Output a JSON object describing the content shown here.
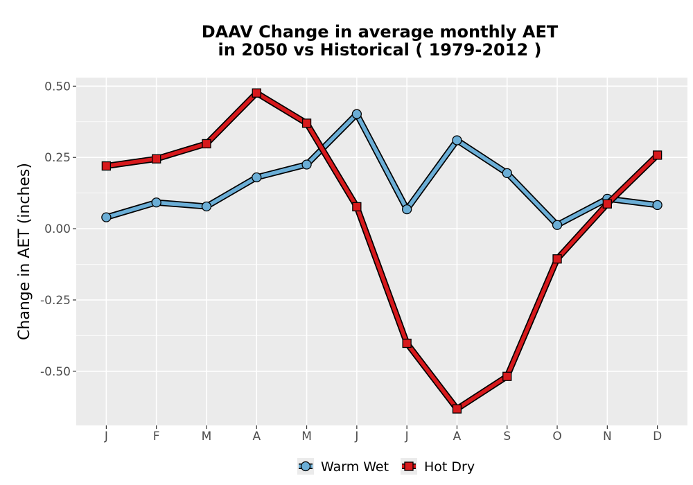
{
  "chart_data": {
    "type": "line",
    "title_line1": "DAAV  Change in average monthly AET",
    "title_line2": "in 2050 vs Historical ( 1979-2012 )",
    "xlabel": "",
    "ylabel": "Change in AET (inches)",
    "categories": [
      "J",
      "F",
      "M",
      "A",
      "M",
      "J",
      "J",
      "A",
      "S",
      "O",
      "N",
      "D"
    ],
    "ylim": [
      -0.69,
      0.53
    ],
    "yticks": [
      -0.5,
      -0.25,
      0.0,
      0.25,
      0.5
    ],
    "ytick_labels": [
      "-0.50",
      "-0.25",
      "0.00",
      "0.25",
      "0.50"
    ],
    "grid": true,
    "background": "#ebebeb",
    "legend_position": "bottom",
    "series": [
      {
        "name": "Warm Wet",
        "marker": "circle",
        "color": "#6baed6",
        "values": [
          0.04,
          0.092,
          0.078,
          0.18,
          0.225,
          0.402,
          0.068,
          0.31,
          0.195,
          0.013,
          0.105,
          0.083
        ]
      },
      {
        "name": "Hot Dry",
        "marker": "square",
        "color": "#d7191c",
        "values": [
          0.22,
          0.245,
          0.298,
          0.476,
          0.37,
          0.077,
          -0.402,
          -0.632,
          -0.518,
          -0.106,
          0.087,
          0.258
        ]
      }
    ]
  }
}
